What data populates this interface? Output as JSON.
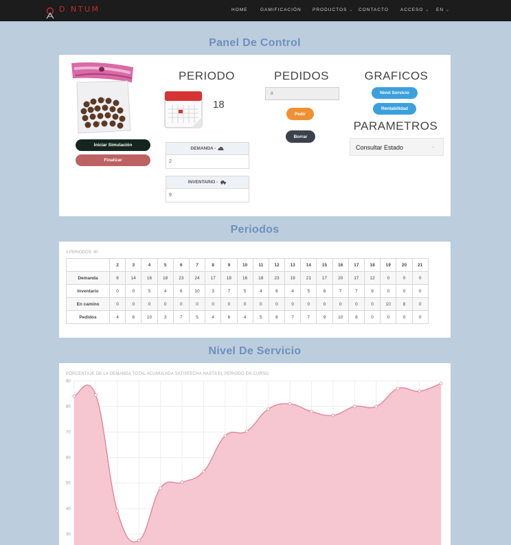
{
  "nav": {
    "logo_text": "D NTUM",
    "items": [
      {
        "label": "HOME",
        "has_caret": false
      },
      {
        "label": "GAMIFICACIÓN",
        "has_caret": false
      },
      {
        "label": "PRODUCTOS",
        "has_caret": true
      },
      {
        "label": "CONTACTO",
        "has_caret": false
      },
      {
        "label": "ACCESO",
        "has_caret": true
      },
      {
        "label": "EN",
        "has_caret": true
      }
    ]
  },
  "control": {
    "title": "Panel De Control",
    "periodo_heading": "PERIODO",
    "periodo_value": "18",
    "pedidos_heading": "PEDIDOS",
    "pedidos_input_placeholder": "8",
    "graficos_heading": "GRAFICOS",
    "parametros_heading": "PARAMETROS",
    "iniciar_label": "Iniciar Simulación",
    "finalizar_label": "Finalizar",
    "pedir_label": "Pedir",
    "borrar_label": "Borrar",
    "nivel_servicio_label": "Nivel Servicio",
    "rentabilidad_label": "Rentabilidad",
    "demanda_label": "DEMANDA -",
    "demanda_value": "2",
    "inventario_label": "INVENTARIO -",
    "inventario_value": "9",
    "select_value": "Consultar Estado",
    "colors": {
      "iniciar": "#152620",
      "finalizar": "#bd6262",
      "pedir": "#ef9032",
      "borrar": "#3c424b",
      "blue_btn": "#3ca0dc"
    },
    "icons": [
      "calendar-icon",
      "cloud-icon",
      "cars-icon",
      "product-bag-image"
    ]
  },
  "periodos": {
    "title": "Periodos",
    "caption": "# PERIODOS: 40",
    "columns": [
      "",
      "2",
      "3",
      "4",
      "5",
      "6",
      "7",
      "8",
      "9",
      "10",
      "11",
      "12",
      "13",
      "14",
      "15",
      "16",
      "17",
      "18",
      "19",
      "20",
      "21"
    ],
    "rows": [
      {
        "label": "Demanda",
        "values": [
          "8",
          "14",
          "16",
          "18",
          "23",
          "24",
          "17",
          "18",
          "16",
          "18",
          "23",
          "19",
          "21",
          "17",
          "20",
          "17",
          "12",
          "0",
          "0",
          "0"
        ]
      },
      {
        "label": "Inventario",
        "values": [
          "0",
          "0",
          "5",
          "4",
          "6",
          "10",
          "3",
          "7",
          "5",
          "4",
          "6",
          "4",
          "5",
          "6",
          "7",
          "7",
          "9",
          "0",
          "0",
          "0"
        ]
      },
      {
        "label": "En camino",
        "values": [
          "0",
          "0",
          "0",
          "0",
          "0",
          "0",
          "0",
          "0",
          "0",
          "0",
          "0",
          "0",
          "0",
          "0",
          "0",
          "0",
          "0",
          "10",
          "8",
          "0"
        ]
      },
      {
        "label": "Pedidos",
        "values": [
          "4",
          "6",
          "10",
          "3",
          "7",
          "5",
          "4",
          "6",
          "4",
          "5",
          "6",
          "7",
          "7",
          "9",
          "10",
          "8",
          "0",
          "0",
          "0",
          "0"
        ]
      }
    ]
  },
  "servicio": {
    "title": "Nivel De Servicio",
    "caption": "PORCENTAJE DE LA DEMANDA TOTAL ACUMULADA SATISFECHA HASTA EL PERIODO EN CURSO.",
    "fill_color": "#f5c3cf",
    "line_color": "#e48aa0"
  },
  "chart_data": {
    "type": "area",
    "title": "",
    "xlabel": "",
    "ylabel": "",
    "y_ticks": [
      "90",
      "80",
      "70",
      "60",
      "50",
      "40",
      "30"
    ],
    "ylim_visible": [
      28,
      90
    ],
    "x": [
      1,
      2,
      3,
      4,
      5,
      6,
      7,
      8,
      9,
      10,
      11,
      12,
      13,
      14,
      15,
      16,
      17,
      18
    ],
    "values": [
      84,
      84.5,
      39,
      27.5,
      48,
      50.3,
      54.5,
      68.5,
      70.3,
      79,
      81,
      78,
      76.5,
      80,
      80,
      87,
      86,
      89
    ],
    "grid": true,
    "legend": "none"
  }
}
